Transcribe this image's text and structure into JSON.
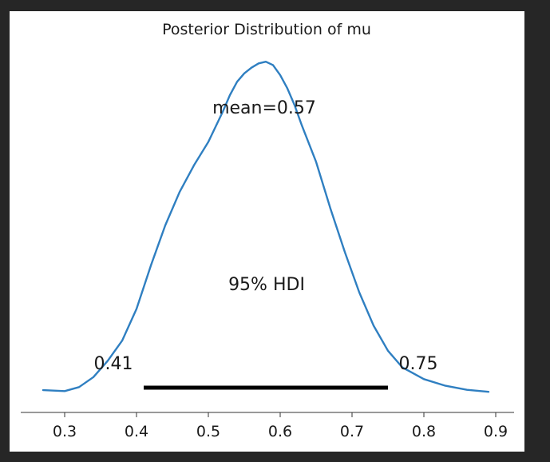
{
  "chart_data": {
    "type": "line",
    "title": "Posterior Distribution of mu",
    "xlabel": "",
    "ylabel": "",
    "xlim": [
      0.24,
      0.915
    ],
    "ylim": [
      0,
      1
    ],
    "x_ticks": [
      "0.3",
      "0.4",
      "0.5",
      "0.6",
      "0.7",
      "0.8",
      "0.9"
    ],
    "x_tick_values": [
      0.3,
      0.4,
      0.5,
      0.6,
      0.7,
      0.8,
      0.9
    ],
    "grid": false,
    "line_color": "#2f7fc1",
    "hdi_color": "#000000",
    "x": [
      0.27,
      0.3,
      0.32,
      0.34,
      0.36,
      0.38,
      0.4,
      0.42,
      0.44,
      0.46,
      0.48,
      0.5,
      0.52,
      0.53,
      0.54,
      0.55,
      0.56,
      0.57,
      0.58,
      0.59,
      0.6,
      0.61,
      0.62,
      0.63,
      0.65,
      0.67,
      0.69,
      0.71,
      0.73,
      0.75,
      0.77,
      0.8,
      0.83,
      0.86,
      0.89
    ],
    "y": [
      0.007,
      0.004,
      0.016,
      0.046,
      0.095,
      0.155,
      0.25,
      0.38,
      0.5,
      0.6,
      0.68,
      0.75,
      0.84,
      0.89,
      0.93,
      0.955,
      0.972,
      0.985,
      0.99,
      0.98,
      0.95,
      0.91,
      0.86,
      0.8,
      0.69,
      0.55,
      0.42,
      0.3,
      0.2,
      0.125,
      0.075,
      0.04,
      0.02,
      0.008,
      0.002
    ],
    "mean_label": "mean=0.57",
    "hdi_label": "95% HDI",
    "hdi_low": 0.41,
    "hdi_high": 0.75,
    "hdi_low_label": "0.41",
    "hdi_high_label": "0.75"
  }
}
